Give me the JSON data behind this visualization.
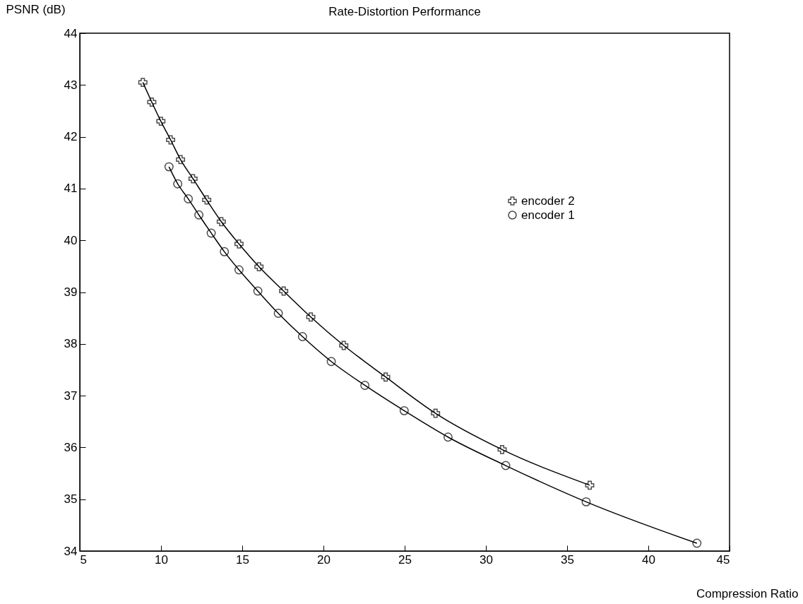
{
  "chart_data": {
    "type": "line",
    "title": "Rate-Distortion Performance",
    "xlabel": "Compression Ratio",
    "ylabel": "PSNR (dB)",
    "xlim": [
      5,
      45
    ],
    "xticks": [
      5,
      10,
      15,
      20,
      25,
      30,
      35,
      40,
      45
    ],
    "ylim": [
      34,
      44
    ],
    "yticks": [
      34,
      35,
      36,
      37,
      38,
      39,
      40,
      41,
      42,
      43,
      44
    ],
    "grid": false,
    "legend": "top right",
    "line_style": "solid",
    "series": [
      {
        "name": "encoder 2",
        "color": "#000000",
        "marker": "cross",
        "x": [
          8.88,
          9.43,
          9.99,
          10.59,
          11.2,
          11.97,
          12.81,
          13.71,
          14.8,
          16.03,
          17.55,
          19.22,
          21.25,
          23.83,
          26.9,
          31.0,
          36.39
        ],
        "values": [
          43.05,
          42.67,
          42.3,
          41.94,
          41.56,
          41.19,
          40.78,
          40.36,
          39.93,
          39.49,
          39.02,
          38.52,
          37.97,
          37.36,
          36.66,
          35.96,
          35.27
        ]
      },
      {
        "name": "encoder 1",
        "color": "#000000",
        "marker": "circle",
        "x": [
          10.49,
          11.03,
          11.68,
          12.33,
          13.09,
          13.9,
          14.8,
          15.96,
          17.22,
          18.71,
          20.48,
          22.55,
          24.97,
          27.67,
          31.22,
          36.17,
          42.99
        ],
        "values": [
          41.42,
          41.09,
          40.8,
          40.49,
          40.14,
          39.78,
          39.43,
          39.02,
          38.59,
          38.14,
          37.66,
          37.2,
          36.71,
          36.2,
          35.65,
          34.95,
          34.15
        ]
      }
    ]
  }
}
